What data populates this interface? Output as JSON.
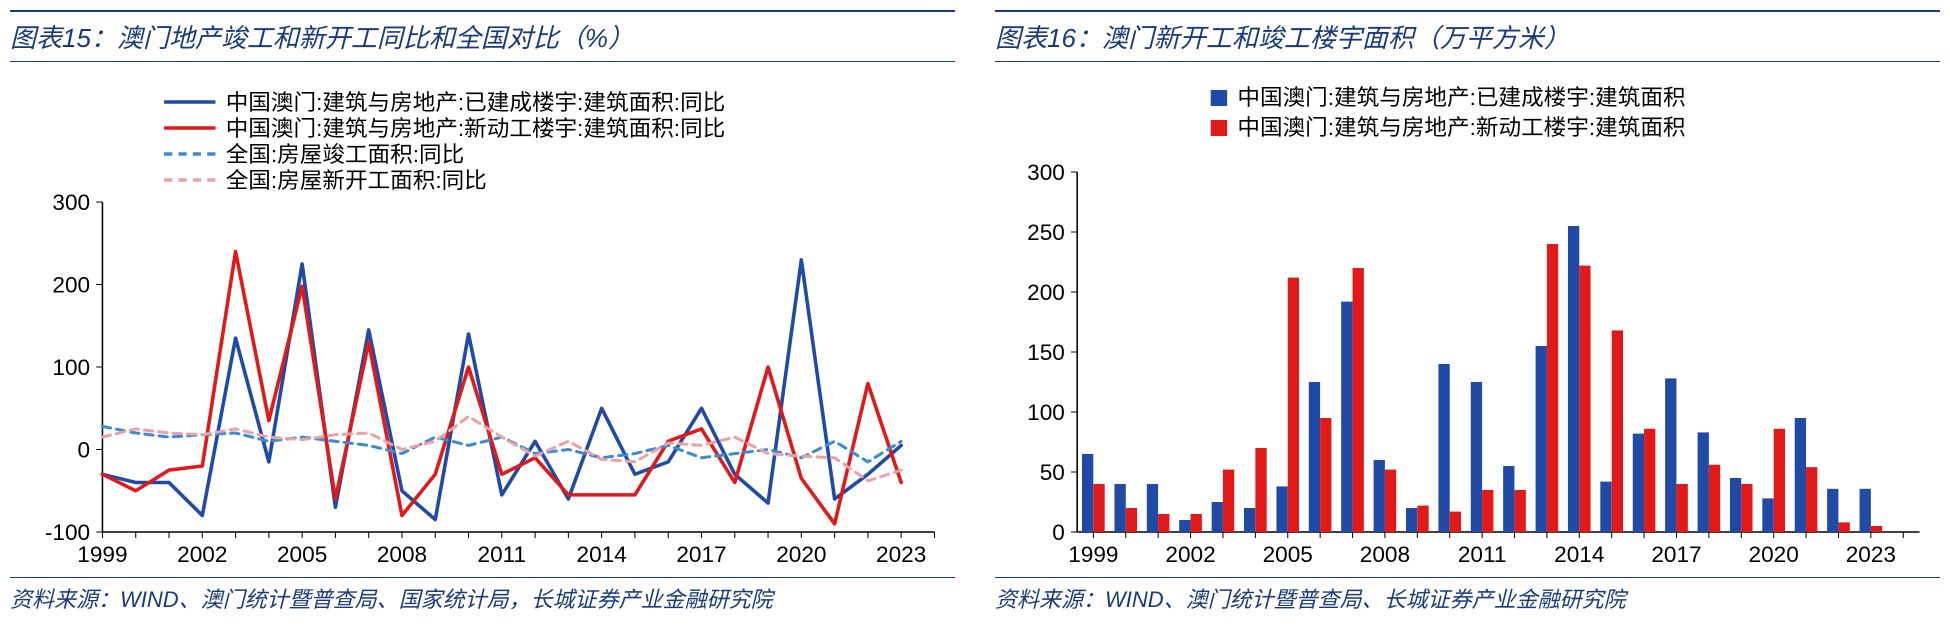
{
  "chart15": {
    "title": "图表15：澳门地产竣工和新开工同比和全国对比（%）",
    "source": "资料来源：WIND、澳门统计暨普查局、国家统计局，长城证券产业金融研究院",
    "type": "line",
    "xlim": [
      1999,
      2024
    ],
    "ylim": [
      -100,
      300
    ],
    "ytick_step": 100,
    "xtick_step": 3,
    "background_color": "#ffffff",
    "axis_color": "#000000",
    "axis_fontsize": 22,
    "legend_fontsize": 22,
    "line_width_solid": 3.5,
    "line_width_dash": 3,
    "dash_pattern": "8,6",
    "series": [
      {
        "label": "中国澳门:建筑与房地产:已建成楼宇:建筑面积:同比",
        "color": "#1f4aa6",
        "dash": false,
        "values": [
          -30,
          -40,
          -40,
          -80,
          135,
          -15,
          225,
          -70,
          145,
          -50,
          -85,
          140,
          -55,
          10,
          -60,
          50,
          -30,
          -15,
          50,
          -30,
          -65,
          230,
          -60,
          -30,
          5
        ]
      },
      {
        "label": "中国澳门:建筑与房地产:新动工楼宇:建筑面积:同比",
        "color": "#e11919",
        "dash": false,
        "values": [
          -30,
          -50,
          -25,
          -20,
          240,
          35,
          198,
          -60,
          130,
          -80,
          -30,
          100,
          -30,
          -10,
          -55,
          -55,
          -55,
          10,
          25,
          -40,
          100,
          -35,
          -90,
          80,
          -40
        ]
      },
      {
        "label": "全国:房屋竣工面积:同比",
        "color": "#3a8ad6",
        "dash": true,
        "values": [
          28,
          20,
          15,
          18,
          20,
          10,
          15,
          10,
          5,
          -5,
          15,
          5,
          15,
          -5,
          0,
          -10,
          -5,
          5,
          -10,
          -5,
          0,
          -10,
          10,
          -15,
          10
        ]
      },
      {
        "label": "全国:房屋新开工面积:同比",
        "color": "#e9a0a6",
        "dash": true,
        "values": [
          15,
          25,
          20,
          18,
          25,
          15,
          12,
          18,
          20,
          0,
          10,
          40,
          15,
          -8,
          10,
          -12,
          -15,
          8,
          5,
          15,
          -5,
          -8,
          -10,
          -38,
          -25
        ]
      }
    ]
  },
  "chart16": {
    "title": "图表16：澳门新开工和竣工楼宇面积（万平方米）",
    "source": "资料来源：WIND、澳门统计暨普查局、长城证券产业金融研究院",
    "type": "bar",
    "xlim": [
      1999,
      2024
    ],
    "ylim": [
      0,
      300
    ],
    "ytick_step": 50,
    "xtick_step": 3,
    "background_color": "#ffffff",
    "axis_color": "#000000",
    "axis_fontsize": 22,
    "legend_fontsize": 22,
    "bar_group_width": 0.7,
    "series": [
      {
        "label": "中国澳门:建筑与房地产:已建成楼宇:建筑面积",
        "color": "#1f4aa6",
        "values": [
          65,
          40,
          40,
          10,
          25,
          20,
          38,
          125,
          192,
          60,
          20,
          140,
          125,
          55,
          155,
          255,
          42,
          82,
          128,
          83,
          45,
          28,
          95,
          36,
          36
        ]
      },
      {
        "label": "中国澳门:建筑与房地产:新动工楼宇:建筑面积",
        "color": "#e11919",
        "values": [
          40,
          20,
          15,
          15,
          52,
          70,
          212,
          95,
          220,
          52,
          22,
          17,
          35,
          35,
          240,
          222,
          168,
          86,
          40,
          56,
          40,
          86,
          54,
          8,
          5
        ]
      }
    ]
  }
}
